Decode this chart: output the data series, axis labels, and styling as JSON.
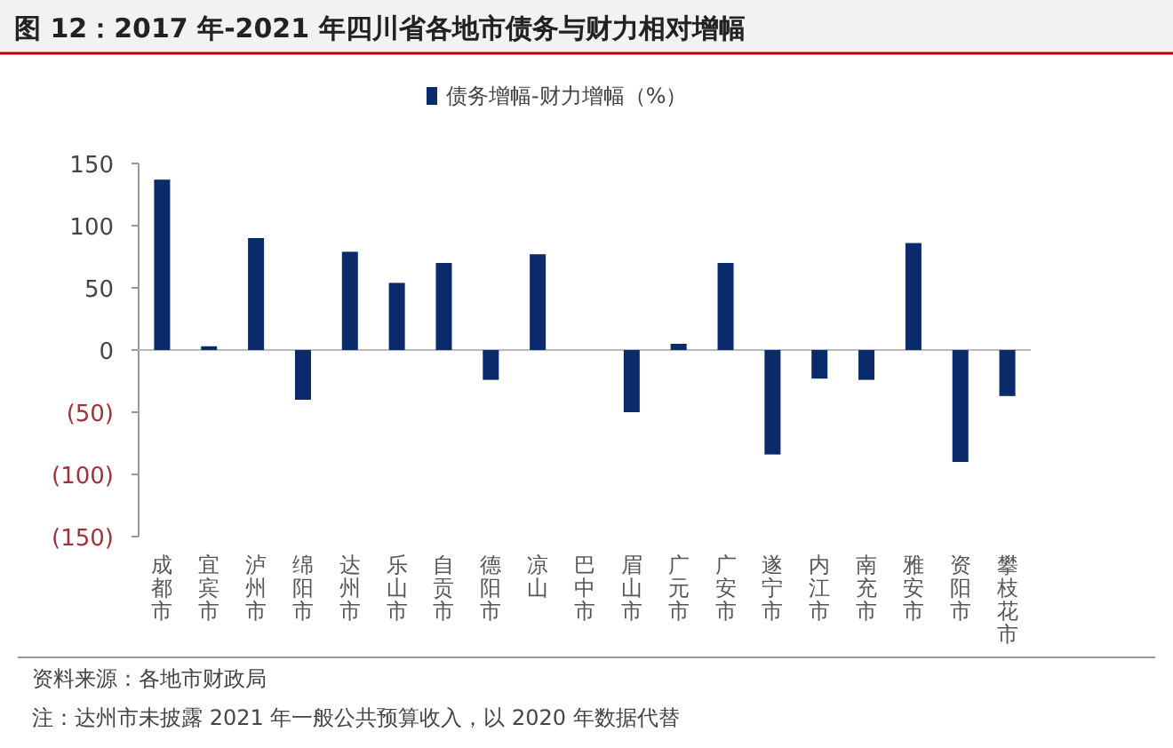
{
  "chart_data": {
    "type": "bar",
    "title": "图 12：2017 年-2021 年四川省各地市债务与财力相对增幅",
    "categories": [
      "成都市",
      "宜宾市",
      "泸州市",
      "绵阳市",
      "达州市",
      "乐山市",
      "自贡市",
      "德阳市",
      "凉山",
      "巴中市",
      "眉山市",
      "广元市",
      "广安市",
      "遂宁市",
      "内江市",
      "南充市",
      "雅安市",
      "资阳市",
      "攀枝花市"
    ],
    "series": [
      {
        "name": "债务增幅-财力增幅（%）",
        "color": "#0b2a6b",
        "values": [
          137,
          3,
          90,
          -40,
          79,
          54,
          70,
          -24,
          77,
          null,
          -50,
          5,
          70,
          -84,
          -23,
          -24,
          86,
          -90,
          -37
        ]
      }
    ],
    "ylim": [
      -150,
      150
    ],
    "yticks": [
      {
        "value": -150,
        "label": "(150)"
      },
      {
        "value": -100,
        "label": "(100)"
      },
      {
        "value": -50,
        "label": "(50)"
      },
      0,
      50,
      100,
      150
    ],
    "legend": "top",
    "annotations": [
      "资料来源：各地市财政局",
      "注：达州市未披露 2021 年一般公共预算收入，以 2020 年数据代替"
    ]
  }
}
